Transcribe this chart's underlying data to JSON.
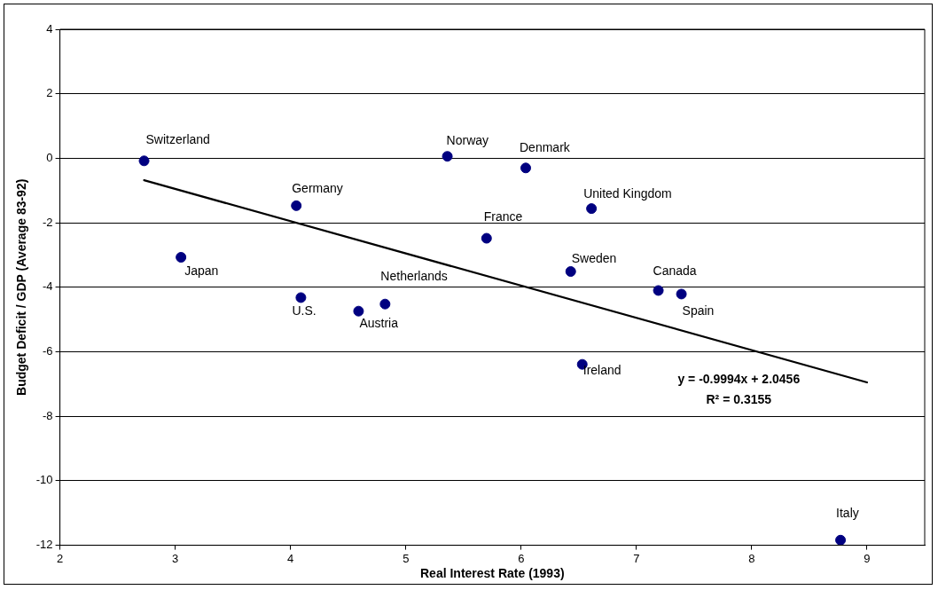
{
  "chart_data": {
    "type": "scatter",
    "xlabel": "Real Interest Rate (1993)",
    "ylabel": "Budget Deficit / GDP (Average 83-92)",
    "xlim": [
      2,
      9.5
    ],
    "xticks": [
      2,
      3,
      4,
      5,
      6,
      7,
      8,
      9
    ],
    "ylim": [
      -12,
      4
    ],
    "yticks": [
      -12,
      -10,
      -8,
      -6,
      -4,
      -2,
      0,
      2,
      4
    ],
    "grid": "y",
    "legend": false,
    "series": [
      {
        "type": "scatter",
        "color": "#000080",
        "marker": "circle",
        "x": [
          2.73,
          3.05,
          4.05,
          4.09,
          4.59,
          4.82,
          5.36,
          5.7,
          6.04,
          6.61,
          6.43,
          6.53,
          7.19,
          7.39,
          8.77
        ],
        "values": [
          -0.08,
          -3.07,
          -1.47,
          -4.32,
          -4.74,
          -4.52,
          0.06,
          -2.48,
          -0.3,
          -1.56,
          -3.51,
          -6.39,
          -4.1,
          -4.21,
          -11.84
        ]
      },
      {
        "type": "line",
        "color": "#000000",
        "marker": "none",
        "x": [
          2.73,
          9
        ],
        "values": [
          -0.68,
          -6.95
        ]
      }
    ],
    "annotations": [
      {
        "text": "Switzerland",
        "x": 2.73,
        "y": -0.08
      },
      {
        "text": "Japan",
        "x": 3.05,
        "y": -3.07
      },
      {
        "text": "Germany",
        "x": 4.05,
        "y": -1.47
      },
      {
        "text": "U.S.",
        "x": 4.09,
        "y": -4.32
      },
      {
        "text": "Austria",
        "x": 4.59,
        "y": -4.74
      },
      {
        "text": "Netherlands",
        "x": 4.82,
        "y": -4.52
      },
      {
        "text": "Norway",
        "x": 5.36,
        "y": 0.06
      },
      {
        "text": "France",
        "x": 5.7,
        "y": -2.48
      },
      {
        "text": "Denmark",
        "x": 6.04,
        "y": -0.3
      },
      {
        "text": "United Kingdom",
        "x": 6.61,
        "y": -1.56
      },
      {
        "text": "Sweden",
        "x": 6.43,
        "y": -3.51
      },
      {
        "text": "Ireland",
        "x": 6.53,
        "y": -6.39
      },
      {
        "text": "Canada",
        "x": 7.19,
        "y": -4.1
      },
      {
        "text": "Spain",
        "x": 7.39,
        "y": -4.21
      },
      {
        "text": "Italy",
        "x": 8.77,
        "y": -11.84
      },
      "y = -0.9994x + 2.0456",
      "R² = 0.3155"
    ]
  }
}
